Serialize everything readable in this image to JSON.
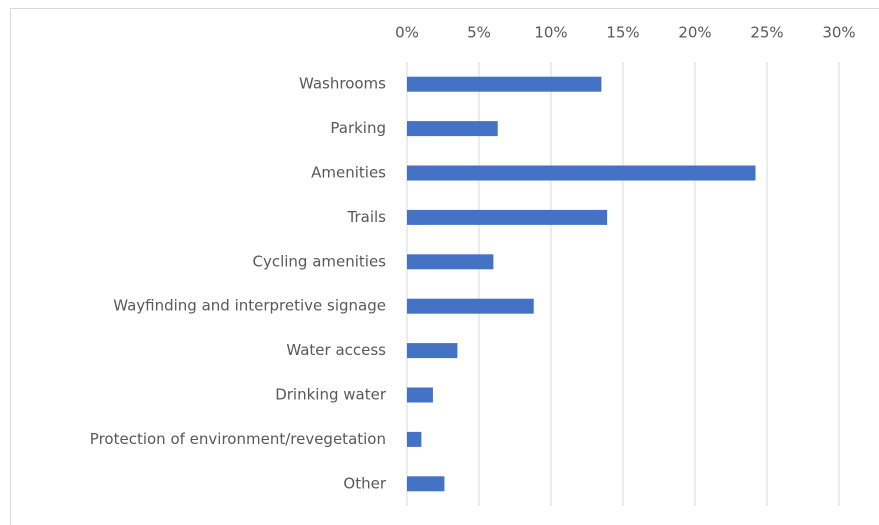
{
  "chart_data": {
    "type": "bar",
    "orientation": "horizontal",
    "categories": [
      "Washrooms",
      "Parking",
      "Amenities",
      "Trails",
      "Cycling amenities",
      "Wayfinding and interpretive signage",
      "Water access",
      "Drinking water",
      "Protection of environment/revegetation",
      "Other"
    ],
    "values": [
      13.5,
      6.3,
      24.2,
      13.9,
      6.0,
      8.8,
      3.5,
      1.8,
      1.0,
      2.6
    ],
    "color": "#4472c4",
    "xlim": [
      0,
      30
    ],
    "xticks": [
      {
        "value": 0,
        "label": "0%"
      },
      {
        "value": 5,
        "label": "5%"
      },
      {
        "value": 10,
        "label": "10%"
      },
      {
        "value": 15,
        "label": "15%"
      },
      {
        "value": 20,
        "label": "20%"
      },
      {
        "value": 25,
        "label": "25%"
      },
      {
        "value": 30,
        "label": "30%"
      }
    ],
    "grid": true
  }
}
